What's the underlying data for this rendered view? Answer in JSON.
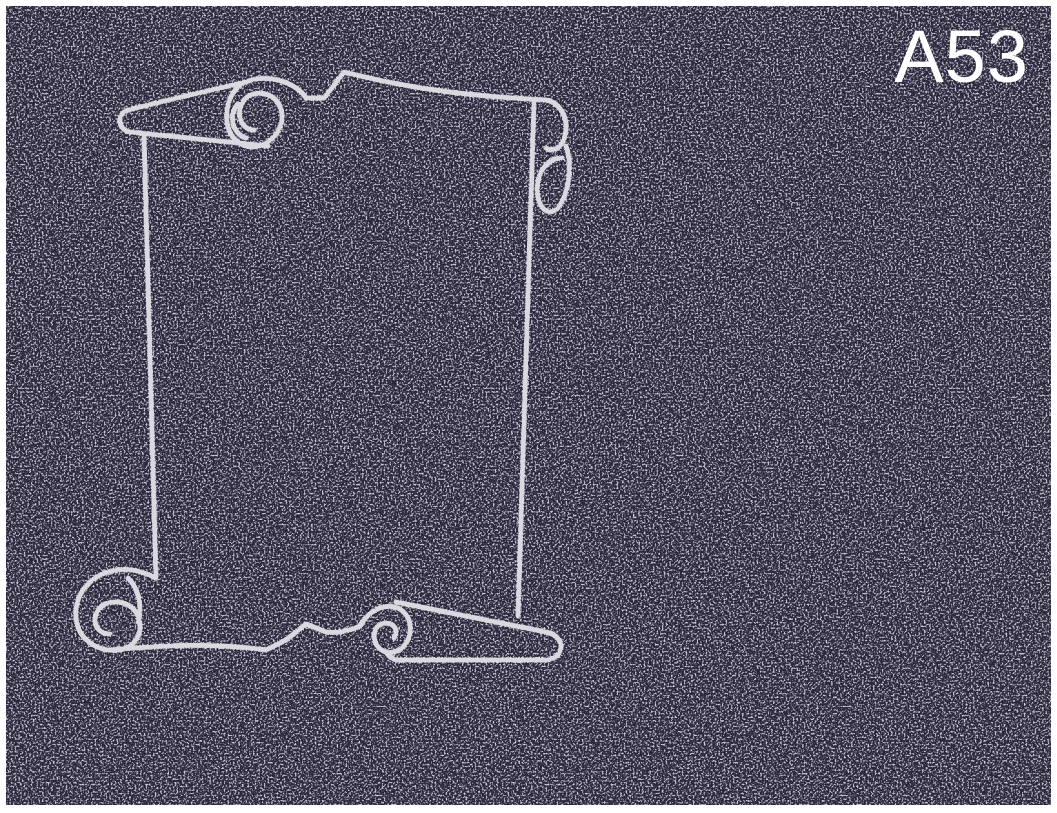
{
  "design": {
    "code": "A53",
    "motif_icon": "scroll-frame-icon",
    "background_color": "#1f1d2c",
    "outline_color": "#d9d9e0"
  }
}
